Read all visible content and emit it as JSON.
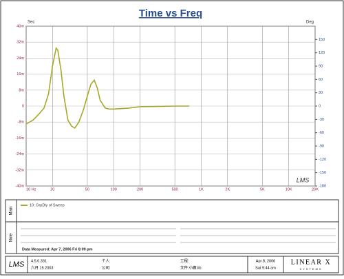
{
  "chart_data": {
    "type": "line",
    "title": "Time vs Freq",
    "y_label": "Sec",
    "y2_label": "Deg",
    "xscale": "log",
    "grid": true,
    "x": [
      10,
      12,
      14,
      16,
      18,
      20,
      22,
      23,
      25,
      27,
      30,
      33,
      36,
      40,
      45,
      50,
      55,
      60,
      65,
      70,
      80,
      90,
      100,
      150,
      200,
      300,
      500,
      730
    ],
    "series": [
      {
        "name": "10: GrpDly of Sweep",
        "color": "#a8a828",
        "values": [
          -0.009,
          -0.007,
          -0.004,
          -0.001,
          0.006,
          0.02,
          0.029,
          0.028,
          0.018,
          0.005,
          -0.007,
          -0.01,
          -0.011,
          -0.008,
          -0.002,
          0.005,
          0.011,
          0.013,
          0.009,
          0.003,
          -0.001,
          -0.0015,
          -0.0015,
          -0.001,
          -0.0003,
          -0.0002,
          0,
          0
        ]
      }
    ],
    "xlim": [
      10,
      20000
    ],
    "xticks": [
      {
        "value": 10,
        "label": "10 Hz"
      },
      20,
      50,
      100,
      200,
      500,
      {
        "value": 1000,
        "label": "1K"
      },
      {
        "value": 2000,
        "label": "2K"
      },
      {
        "value": 5000,
        "label": "5K"
      },
      {
        "value": 10000,
        "label": "10K"
      },
      {
        "value": 20000,
        "label": "20K"
      }
    ],
    "ylim": [
      -0.04,
      0.04
    ],
    "yticks": [
      {
        "value": 0.04,
        "label": "40m"
      },
      {
        "value": 0.032,
        "label": "32m"
      },
      {
        "value": 0.024,
        "label": "24m"
      },
      {
        "value": 0.016,
        "label": "16m"
      },
      {
        "value": 0.008,
        "label": "8m"
      },
      0,
      {
        "value": -0.008,
        "label": "-8m"
      },
      {
        "value": -0.016,
        "label": "-16m"
      },
      {
        "value": -0.024,
        "label": "-24m"
      },
      {
        "value": -0.032,
        "label": "-32m"
      },
      {
        "value": -0.04,
        "label": "-40m"
      }
    ],
    "y2lim": [
      -180,
      180
    ],
    "y2ticks": [
      150,
      120,
      90,
      60,
      30,
      0,
      -30,
      -60,
      -90,
      -120,
      -150,
      -180
    ]
  },
  "panels": {
    "main_label": "Main",
    "note_label": "Note",
    "measured": "Data Measured: Apr 7, 2006  Fri  8:09 pm"
  },
  "footer": {
    "logo": "LMS",
    "version": "4.5.0.331",
    "build_date": "六月 15 2003",
    "person": "个人:",
    "company": "公司:",
    "project": "工程:",
    "file": "文件:小鹿.lib",
    "date": "Apr 8, 2006",
    "time": "Sat  9:44 am",
    "brand": "LINEAR X",
    "brand_sub": "SYSTEMS"
  }
}
